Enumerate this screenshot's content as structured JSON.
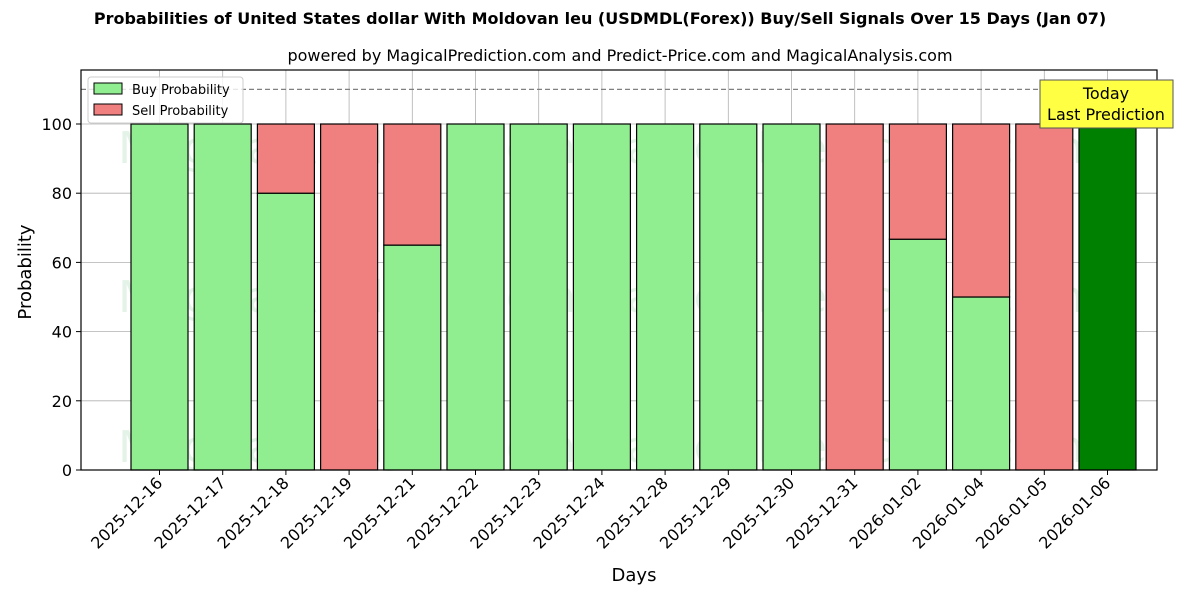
{
  "header": {
    "title": "Probabilities of United States dollar With Moldovan leu (USDMDL(Forex)) Buy/Sell Signals Over 15 Days (Jan 07)",
    "subtitle": "powered by MagicalPrediction.com and Predict-Price.com and MagicalAnalysis.com"
  },
  "colors": {
    "buy": "#90ee90",
    "sell": "#f08080",
    "today": "#008000",
    "annotation_bg": "#ffff44",
    "grid": "#b0b0b0"
  },
  "legend": {
    "buy_label": "Buy Probability",
    "sell_label": "Sell Probability"
  },
  "annotation": {
    "line1": "Today",
    "line2": "Last Prediction"
  },
  "watermarks": [
    "MagicalAnalysis.com",
    "MagicalPrediction.com"
  ],
  "chart_data": {
    "type": "bar",
    "stacked": true,
    "title": "Probabilities of United States dollar With Moldovan leu (USDMDL(Forex)) Buy/Sell Signals Over 15 Days (Jan 07)",
    "subtitle": "powered by MagicalPrediction.com and Predict-Price.com and MagicalAnalysis.com",
    "xlabel": "Days",
    "ylabel": "Probability",
    "ylim": [
      0,
      115
    ],
    "yticks": [
      0,
      20,
      40,
      60,
      80,
      100
    ],
    "grid": true,
    "legend_position": "upper left",
    "reference_line": {
      "y": 110,
      "style": "dashed"
    },
    "categories": [
      "2025-12-16",
      "2025-12-17",
      "2025-12-18",
      "2025-12-19",
      "2025-12-21",
      "2025-12-22",
      "2025-12-23",
      "2025-12-24",
      "2025-12-28",
      "2025-12-29",
      "2025-12-30",
      "2025-12-31",
      "2026-01-02",
      "2026-01-04",
      "2026-01-05",
      "2026-01-06"
    ],
    "series": [
      {
        "name": "Buy Probability",
        "values": [
          100,
          100,
          80,
          0,
          65,
          100,
          100,
          100,
          100,
          100,
          100,
          0,
          66.7,
          50,
          0,
          100
        ]
      },
      {
        "name": "Sell Probability",
        "values": [
          0,
          0,
          20,
          100,
          35,
          0,
          0,
          0,
          0,
          0,
          0,
          100,
          33.3,
          50,
          100,
          0
        ]
      }
    ],
    "highlight": {
      "category": "2026-01-06",
      "label": "Today\nLast Prediction",
      "color": "#008000"
    }
  }
}
